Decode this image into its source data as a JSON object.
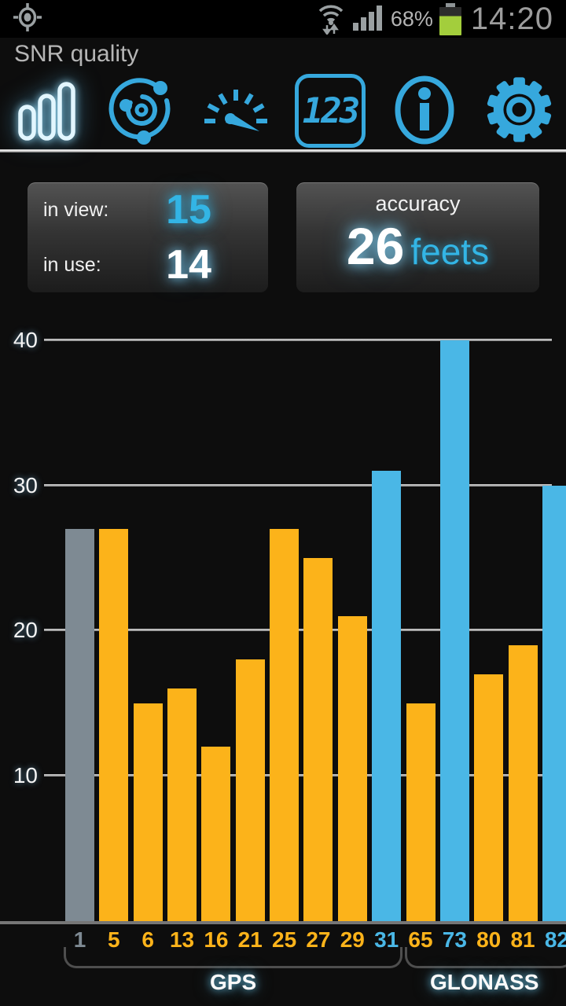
{
  "status_bar": {
    "battery_percent": "68%",
    "time": "14:20"
  },
  "header": {
    "title": "SNR quality",
    "tabs": [
      {
        "name": "snr-chart",
        "active": true
      },
      {
        "name": "sky-plot",
        "active": false
      },
      {
        "name": "speedometer",
        "active": false
      },
      {
        "name": "digital-data",
        "active": false,
        "icon_text": "123"
      },
      {
        "name": "info",
        "active": false
      },
      {
        "name": "settings",
        "active": false
      }
    ]
  },
  "summary": {
    "in_view_label": "in view:",
    "in_view_value": "15",
    "in_use_label": "in use:",
    "in_use_value": "14",
    "accuracy_label": "accuracy",
    "accuracy_value": "26",
    "accuracy_unit": "feets"
  },
  "chart_data": {
    "type": "bar",
    "title": "SNR quality",
    "ylim": [
      0,
      40
    ],
    "yticks": [
      10,
      20,
      30,
      40
    ],
    "grid": true,
    "colors": {
      "gray": "#7e8a93",
      "orange": "#fcb31a",
      "blue": "#4ab7e6"
    },
    "bars": [
      {
        "sat": "1",
        "value": 27,
        "color": "gray",
        "system": "GPS"
      },
      {
        "sat": "5",
        "value": 27,
        "color": "orange",
        "system": "GPS"
      },
      {
        "sat": "6",
        "value": 15,
        "color": "orange",
        "system": "GPS"
      },
      {
        "sat": "13",
        "value": 16,
        "color": "orange",
        "system": "GPS"
      },
      {
        "sat": "16",
        "value": 12,
        "color": "orange",
        "system": "GPS"
      },
      {
        "sat": "21",
        "value": 18,
        "color": "orange",
        "system": "GPS"
      },
      {
        "sat": "25",
        "value": 27,
        "color": "orange",
        "system": "GPS"
      },
      {
        "sat": "27",
        "value": 25,
        "color": "orange",
        "system": "GPS"
      },
      {
        "sat": "29",
        "value": 21,
        "color": "orange",
        "system": "GPS"
      },
      {
        "sat": "31",
        "value": 31,
        "color": "blue",
        "system": "GPS"
      },
      {
        "sat": "65",
        "value": 15,
        "color": "orange",
        "system": "GLONASS"
      },
      {
        "sat": "73",
        "value": 40,
        "color": "blue",
        "system": "GLONASS"
      },
      {
        "sat": "80",
        "value": 17,
        "color": "orange",
        "system": "GLONASS"
      },
      {
        "sat": "81",
        "value": 19,
        "color": "orange",
        "system": "GLONASS"
      },
      {
        "sat": "82",
        "value": 30,
        "color": "blue",
        "system": "GLONASS"
      }
    ]
  }
}
